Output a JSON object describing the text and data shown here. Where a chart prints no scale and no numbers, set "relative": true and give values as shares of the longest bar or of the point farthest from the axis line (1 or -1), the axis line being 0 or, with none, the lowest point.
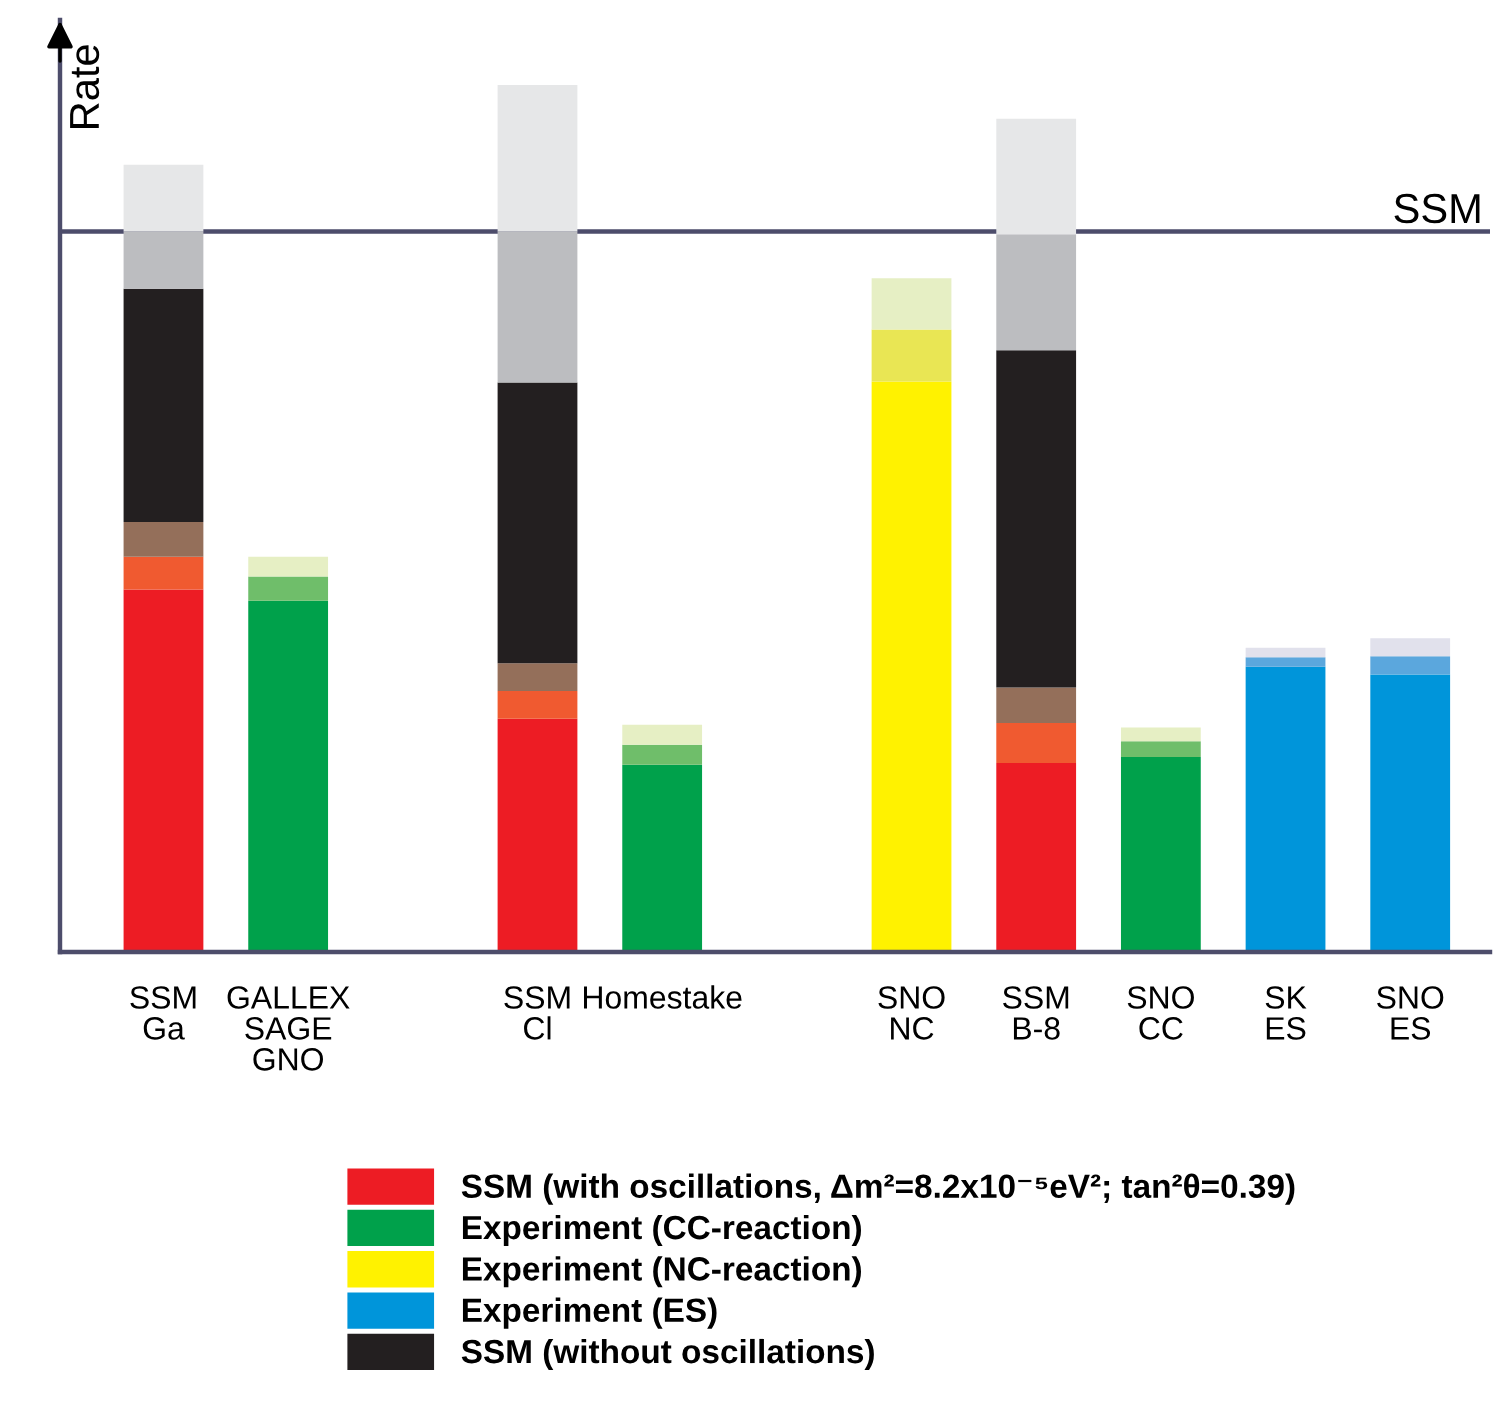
{
  "chart_data": {
    "type": "bar",
    "stacked": true,
    "relative": true,
    "ylabel": "Rate",
    "legend": "bottom",
    "categories": [
      "SSM\nGa",
      "GALLEX\nSAGE\nGNO",
      null,
      "SSM\nCl",
      "Homestake",
      null,
      "SNO\nNC",
      "SSM\nB-8",
      "SNO\nCC",
      "SK\nES",
      "SNO\nES"
    ],
    "series": [
      {
        "name": "SSM (with oscillations, Δm²=8.2x10⁻⁵eV²; tan²θ=0.39)",
        "color": "#ed1c24",
        "values": [
          0.418,
          null,
          null,
          0.269,
          null,
          null,
          null,
          0.218,
          null,
          null,
          null
        ]
      },
      {
        "name": "Experiment (CC-reaction)",
        "color": "#00a14b",
        "values": [
          null,
          0.405,
          null,
          null,
          0.216,
          null,
          null,
          null,
          0.225,
          null,
          null
        ]
      },
      {
        "name": "Experiment (NC-reaction)",
        "color": "#fff200",
        "values": [
          null,
          null,
          null,
          null,
          null,
          null,
          0.658,
          null,
          null,
          null,
          null
        ]
      },
      {
        "name": "Experiment (ES)",
        "color": "#0095da",
        "values": [
          null,
          null,
          null,
          null,
          null,
          null,
          null,
          null,
          null,
          0.329,
          0.32
        ]
      },
      {
        "colors": [
          "#f05a30",
          "#6fbe6a",
          null,
          "#f05a30",
          "#6fbe6a",
          null,
          "#e9e654",
          "#f05a30",
          "#6fbe6a",
          "#5ba7dd",
          "#5ba7dd"
        ],
        "values": [
          0.038,
          0.028,
          null,
          0.032,
          0.023,
          null,
          0.06,
          0.046,
          0.018,
          0.011,
          0.021
        ]
      },
      {
        "colors": [
          "#946f5a",
          "#e6efc4",
          null,
          "#946f5a",
          "#e6efc4",
          null,
          "#e6efc4",
          "#946f5a",
          "#e6efc4",
          "#e1e1ec",
          "#e1e1ec"
        ],
        "values": [
          0.04,
          0.023,
          null,
          0.032,
          0.023,
          null,
          0.059,
          0.041,
          0.016,
          0.011,
          0.021
        ]
      },
      {
        "name": "SSM (without oscillations)",
        "color": "#231f20",
        "values": [
          0.269,
          null,
          null,
          0.324,
          null,
          null,
          null,
          0.389,
          null,
          null,
          null
        ]
      },
      {
        "color": "#bcbdc0",
        "values": [
          0.066,
          null,
          null,
          0.174,
          null,
          null,
          null,
          0.134,
          null,
          null,
          null
        ]
      },
      {
        "color": "#e6e7e8",
        "values": [
          0.077,
          null,
          null,
          0.169,
          null,
          null,
          null,
          0.133,
          null,
          null,
          null
        ]
      }
    ],
    "ref_lines": [
      {
        "axis": "y",
        "value": 0.831,
        "label": "SSM",
        "color": "#4d4d6b"
      }
    ]
  }
}
